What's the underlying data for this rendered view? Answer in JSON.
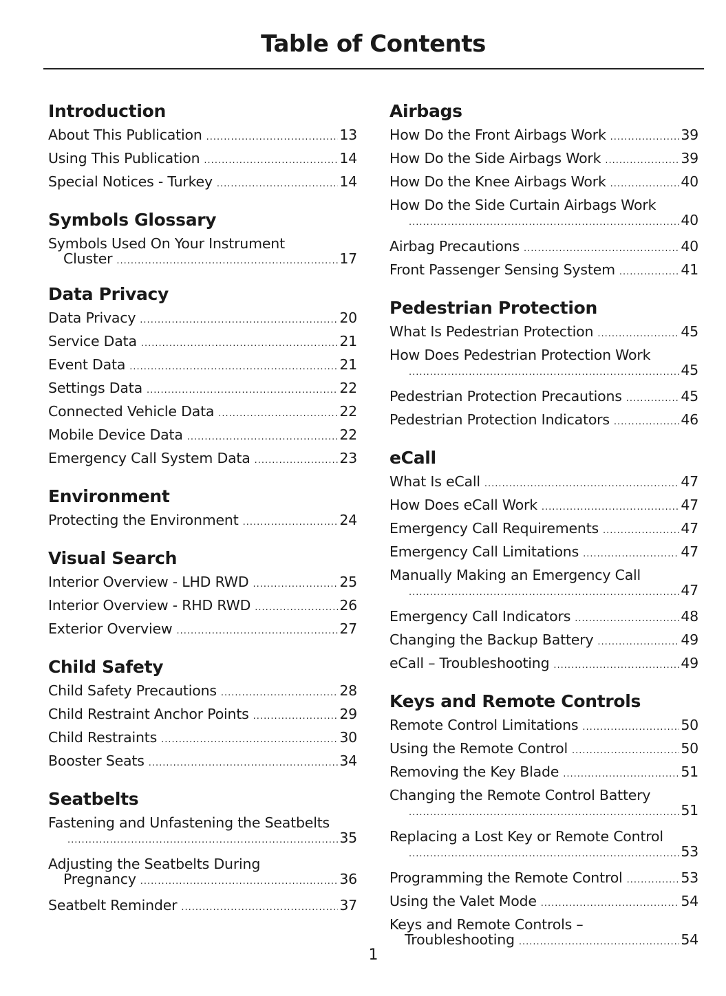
{
  "title": "Table of Contents",
  "page_number": "1",
  "columns": [
    [
      {
        "heading": "Introduction",
        "entries": [
          {
            "title": "About This Publication",
            "page": "13"
          },
          {
            "title": "Using This Publication",
            "page": "14"
          },
          {
            "title": "Special Notices - Turkey",
            "page": "14"
          }
        ]
      },
      {
        "heading": "Symbols Glossary",
        "entries": [
          {
            "title": "Symbols Used On Your Instrument",
            "cont": "Cluster",
            "page": "17"
          }
        ]
      },
      {
        "heading": "Data Privacy",
        "entries": [
          {
            "title": "Data Privacy",
            "page": "20"
          },
          {
            "title": "Service Data",
            "page": "21"
          },
          {
            "title": "Event Data",
            "page": "21"
          },
          {
            "title": "Settings Data",
            "page": "22"
          },
          {
            "title": "Connected Vehicle Data",
            "page": "22"
          },
          {
            "title": "Mobile Device Data",
            "page": "22"
          },
          {
            "title": "Emergency Call System Data",
            "page": "23"
          }
        ]
      },
      {
        "heading": "Environment",
        "entries": [
          {
            "title": "Protecting the Environment",
            "page": "24"
          }
        ]
      },
      {
        "heading": "Visual Search",
        "entries": [
          {
            "title": "Interior Overview - LHD RWD",
            "page": "25"
          },
          {
            "title": "Interior Overview - RHD RWD",
            "page": "26"
          },
          {
            "title": "Exterior Overview",
            "page": "27"
          }
        ]
      },
      {
        "heading": "Child Safety",
        "entries": [
          {
            "title": "Child Safety Precautions",
            "page": "28"
          },
          {
            "title": "Child Restraint Anchor Points",
            "page": "29"
          },
          {
            "title": "Child Restraints",
            "page": "30"
          },
          {
            "title": "Booster Seats",
            "page": "34"
          }
        ]
      },
      {
        "heading": "Seatbelts",
        "entries": [
          {
            "title": "Fastening and Unfastening the Seatbelts",
            "cont": "",
            "page": "35"
          },
          {
            "title": "Adjusting the Seatbelts During",
            "cont": "Pregnancy",
            "page": "36"
          },
          {
            "title": "Seatbelt Reminder",
            "page": "37"
          }
        ]
      }
    ],
    [
      {
        "heading": "Airbags",
        "entries": [
          {
            "title": "How Do the Front Airbags Work",
            "page": "39"
          },
          {
            "title": "How Do the Side Airbags Work",
            "page": "39"
          },
          {
            "title": "How Do the Knee Airbags Work",
            "page": "40"
          },
          {
            "title": "How Do the Side Curtain Airbags Work",
            "cont": "",
            "page": "40"
          },
          {
            "title": "Airbag Precautions",
            "page": "40"
          },
          {
            "title": "Front Passenger Sensing System",
            "page": "41"
          }
        ]
      },
      {
        "heading": "Pedestrian Protection",
        "entries": [
          {
            "title": "What Is Pedestrian Protection",
            "page": "45"
          },
          {
            "title": "How Does Pedestrian Protection Work",
            "cont": "",
            "page": "45"
          },
          {
            "title": "Pedestrian Protection Precautions",
            "page": "45"
          },
          {
            "title": "Pedestrian Protection Indicators",
            "page": "46"
          }
        ]
      },
      {
        "heading": "eCall",
        "entries": [
          {
            "title": "What Is eCall",
            "page": "47"
          },
          {
            "title": "How Does eCall Work",
            "page": "47"
          },
          {
            "title": "Emergency Call Requirements",
            "page": "47"
          },
          {
            "title": "Emergency Call Limitations",
            "page": "47"
          },
          {
            "title": "Manually Making an Emergency Call",
            "cont": "",
            "page": "47"
          },
          {
            "title": "Emergency Call Indicators",
            "page": "48"
          },
          {
            "title": "Changing the Backup Battery",
            "page": "49"
          },
          {
            "title": "eCall – Troubleshooting",
            "page": "49"
          }
        ]
      },
      {
        "heading": "Keys and Remote Controls",
        "entries": [
          {
            "title": "Remote Control Limitations",
            "page": "50"
          },
          {
            "title": "Using the Remote Control",
            "page": "50"
          },
          {
            "title": "Removing the Key Blade",
            "page": "51"
          },
          {
            "title": "Changing the Remote Control Battery",
            "cont": "",
            "page": "51"
          },
          {
            "title": "Replacing a Lost Key or Remote Control",
            "cont": "",
            "page": "53"
          },
          {
            "title": "Programming the Remote Control",
            "page": "53"
          },
          {
            "title": "Using the Valet Mode",
            "page": "54"
          },
          {
            "title": "Keys and Remote Controls –",
            "cont": "Troubleshooting",
            "page": "54"
          }
        ]
      }
    ]
  ]
}
